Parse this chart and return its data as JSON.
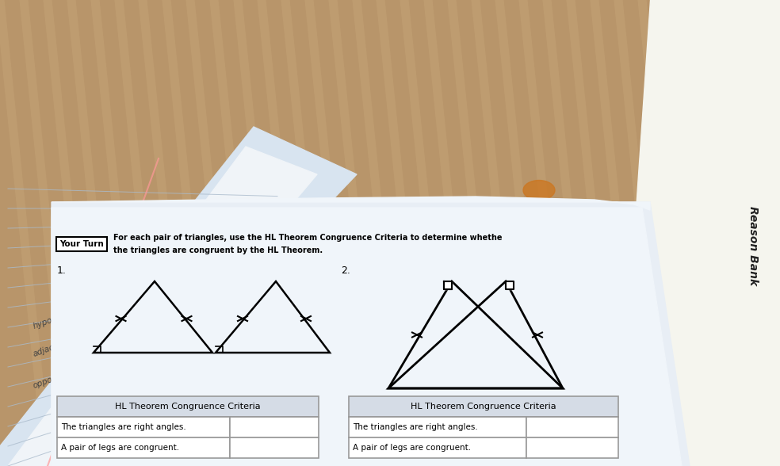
{
  "bg_wood_color": "#B8956A",
  "bg_wood_color2": "#C9A87A",
  "left_nb_color": "#D8E4F0",
  "left_nb_white": "#F0F4F8",
  "main_page_color": "#E8EEF5",
  "main_page_color2": "#F0F5FA",
  "right_nb_color": "#F5F5EE",
  "right_nb_binding": "#2244BB",
  "table_header_bg": "#D5DCE6",
  "table_cell_bg": "#FFFFFF",
  "table_border": "#999999",
  "your_turn_label": "Your Turn",
  "instruction_line1": "For each pair of triangles, use the HL Theorem Congruence Criteria to determine whethe",
  "instruction_line2": "the triangles are congruent by the HL Theorem.",
  "problem1_num": "1.",
  "problem2_num": "2.",
  "table_header": "HL Theorem Congruence Criteria",
  "table_row1": "The triangles are right angles.",
  "table_row2": "A pair of legs are congruent.",
  "reason_bank": "Reason Bank",
  "orange_obj_color": "#CC7722"
}
